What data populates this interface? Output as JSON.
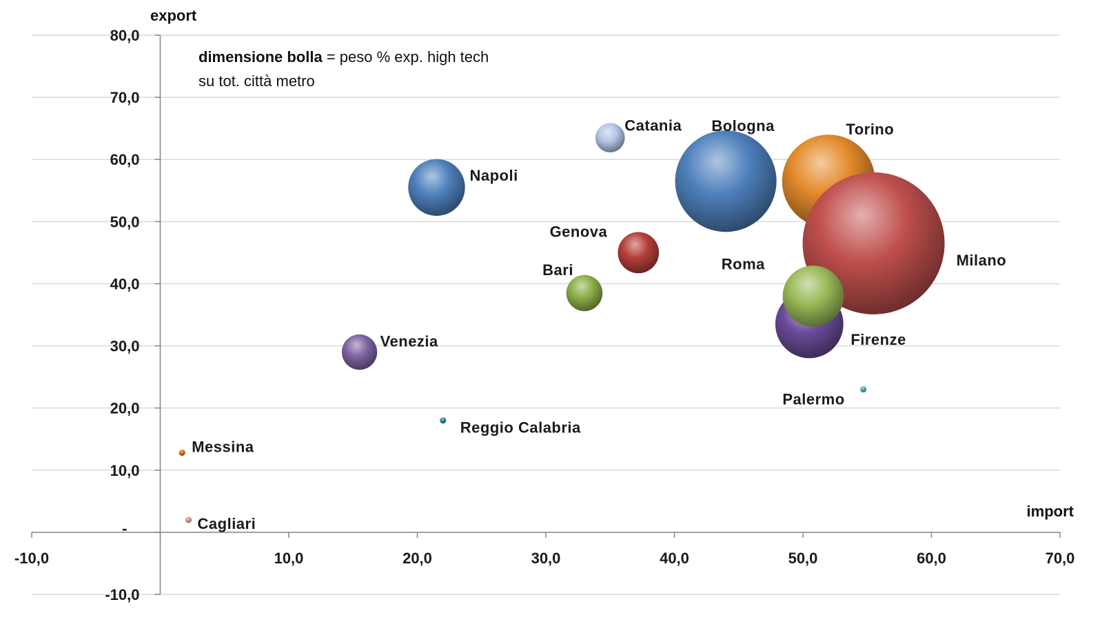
{
  "chart_data": {
    "type": "bubble",
    "x_axis": {
      "title": "import",
      "min": -10,
      "max": 70,
      "step": 10,
      "tick_labels": [
        "-10,0",
        "",
        "10,0",
        "20,0",
        "30,0",
        "40,0",
        "50,0",
        "60,0",
        "70,0"
      ]
    },
    "y_axis": {
      "title": "export",
      "min": -10,
      "max": 80,
      "step": 10,
      "tick_labels": [
        "-10,0",
        "-",
        "10,0",
        "20,0",
        "30,0",
        "40,0",
        "50,0",
        "60,0",
        "70,0",
        "80,0"
      ]
    },
    "annotation": {
      "bold": "dimensione bolla",
      "rest": " = peso % exp. high tech",
      "line2": "su tot. città metro"
    },
    "grid": "horizontal",
    "points": [
      {
        "name": "Milano",
        "x": 55.5,
        "y": 46.5,
        "size": 100,
        "color": "#c0504d"
      },
      {
        "name": "Bologna",
        "x": 44.0,
        "y": 56.5,
        "size": 51,
        "color": "#4f81bd",
        "label_color": "#1f3864"
      },
      {
        "name": "Torino",
        "x": 52.0,
        "y": 56.5,
        "size": 43,
        "color": "#e48b2c"
      },
      {
        "name": "Firenze",
        "x": 50.5,
        "y": 33.5,
        "size": 23,
        "color": "#6b4c9a"
      },
      {
        "name": "Roma",
        "x": 50.8,
        "y": 38.0,
        "size": 18.5,
        "color": "#9bbb59"
      },
      {
        "name": "Napoli",
        "x": 21.5,
        "y": 55.5,
        "size": 16,
        "color": "#4f81bd"
      },
      {
        "name": "Genova",
        "x": 37.2,
        "y": 45.0,
        "size": 8.4,
        "color": "#b5403a"
      },
      {
        "name": "Bari",
        "x": 33.0,
        "y": 38.5,
        "size": 6.5,
        "color": "#8db048"
      },
      {
        "name": "Venezia",
        "x": 15.5,
        "y": 29.0,
        "size": 6.2,
        "color": "#8064a2"
      },
      {
        "name": "Catania",
        "x": 35.0,
        "y": 63.5,
        "size": 4.3,
        "color": "#b4c6e7"
      },
      {
        "name": "Palermo",
        "x": 54.7,
        "y": 23.0,
        "size": 0.1,
        "color": "#4bacc6"
      },
      {
        "name": "Reggio Calabria",
        "x": 22.0,
        "y": 18.0,
        "size": 0.05,
        "color": "#31859c"
      },
      {
        "name": "Messina",
        "x": 1.7,
        "y": 12.8,
        "size": 0.1,
        "color": "#e46c0a"
      },
      {
        "name": "Cagliari",
        "x": 2.2,
        "y": 2.0,
        "size": 0.1,
        "color": "#d99694"
      }
    ]
  }
}
